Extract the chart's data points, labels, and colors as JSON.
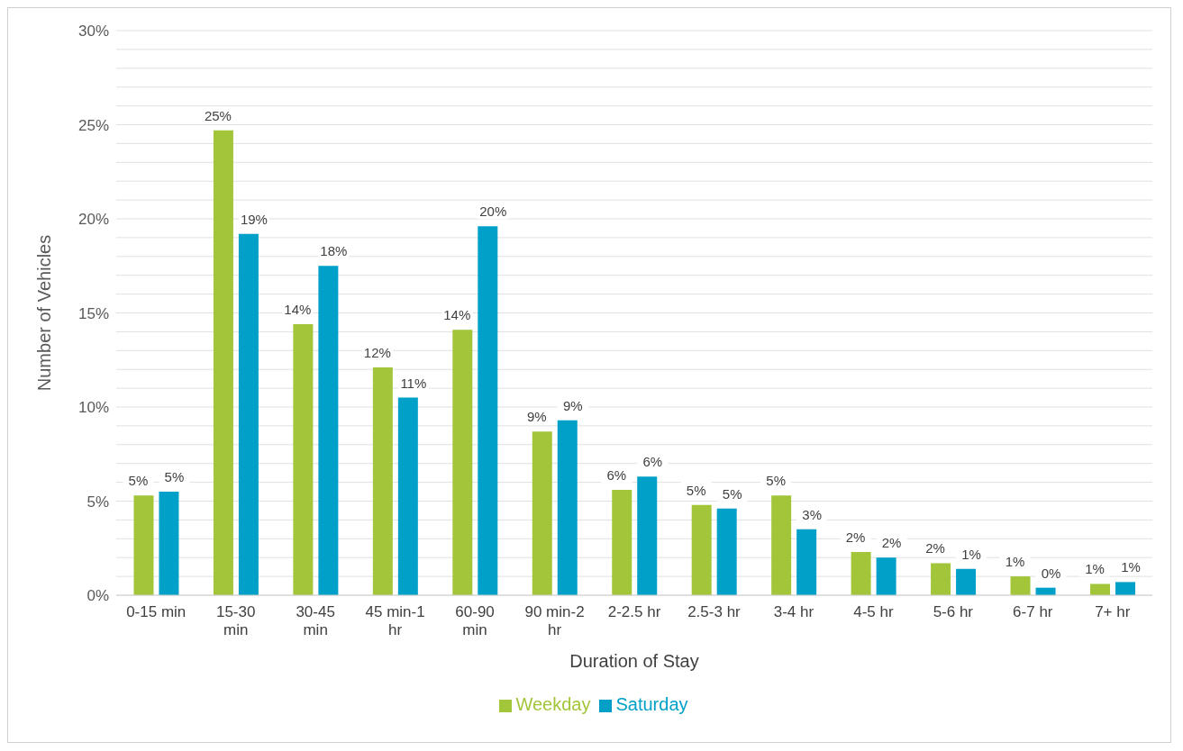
{
  "chart_data": {
    "type": "bar",
    "xlabel": "Duration of Stay",
    "ylabel": "Number of Vehicles",
    "categories": [
      "0-15 min",
      "15-30 min",
      "30-45 min",
      "45 min-1 hr",
      "60-90 min",
      "90 min-2 hr",
      "2-2.5 hr",
      "2.5-3 hr",
      "3-4 hr",
      "4-5 hr",
      "5-6 hr",
      "6-7 hr",
      "7+ hr"
    ],
    "series": [
      {
        "name": "Weekday",
        "color": "#a2c53a",
        "values": [
          5.3,
          24.7,
          14.4,
          12.1,
          14.1,
          8.7,
          5.6,
          4.8,
          5.3,
          2.3,
          1.7,
          1.0,
          0.6
        ],
        "value_labels": [
          "5%",
          "25%",
          "14%",
          "12%",
          "14%",
          "9%",
          "6%",
          "5%",
          "5%",
          "2%",
          "2%",
          "1%",
          "1%"
        ]
      },
      {
        "name": "Saturday",
        "color": "#00a0c8",
        "values": [
          5.5,
          19.2,
          17.5,
          10.5,
          19.6,
          9.3,
          6.3,
          4.6,
          3.5,
          2.0,
          1.4,
          0.4,
          0.7
        ],
        "value_labels": [
          "5%",
          "19%",
          "18%",
          "11%",
          "20%",
          "9%",
          "6%",
          "5%",
          "3%",
          "2%",
          "1%",
          "0%",
          "1%"
        ]
      }
    ],
    "ylim": [
      0,
      30
    ],
    "yticks": [
      {
        "value": 0,
        "label": "0%"
      },
      {
        "value": 1,
        "label": null
      },
      {
        "value": 2,
        "label": null
      },
      {
        "value": 3,
        "label": null
      },
      {
        "value": 4,
        "label": null
      },
      {
        "value": 5,
        "label": "5%"
      },
      {
        "value": 6,
        "label": null
      },
      {
        "value": 7,
        "label": null
      },
      {
        "value": 8,
        "label": null
      },
      {
        "value": 9,
        "label": null
      },
      {
        "value": 10,
        "label": "10%"
      },
      {
        "value": 11,
        "label": null
      },
      {
        "value": 12,
        "label": null
      },
      {
        "value": 13,
        "label": null
      },
      {
        "value": 14,
        "label": null
      },
      {
        "value": 15,
        "label": "15%"
      },
      {
        "value": 16,
        "label": null
      },
      {
        "value": 17,
        "label": null
      },
      {
        "value": 18,
        "label": null
      },
      {
        "value": 19,
        "label": null
      },
      {
        "value": 20,
        "label": "20%"
      },
      {
        "value": 21,
        "label": null
      },
      {
        "value": 22,
        "label": null
      },
      {
        "value": 23,
        "label": null
      },
      {
        "value": 24,
        "label": null
      },
      {
        "value": 25,
        "label": "25%"
      },
      {
        "value": 26,
        "label": null
      },
      {
        "value": 27,
        "label": null
      },
      {
        "value": 28,
        "label": null
      },
      {
        "value": 29,
        "label": null
      },
      {
        "value": 30,
        "label": "30%"
      }
    ],
    "grid": "y",
    "legend": "bottom"
  }
}
